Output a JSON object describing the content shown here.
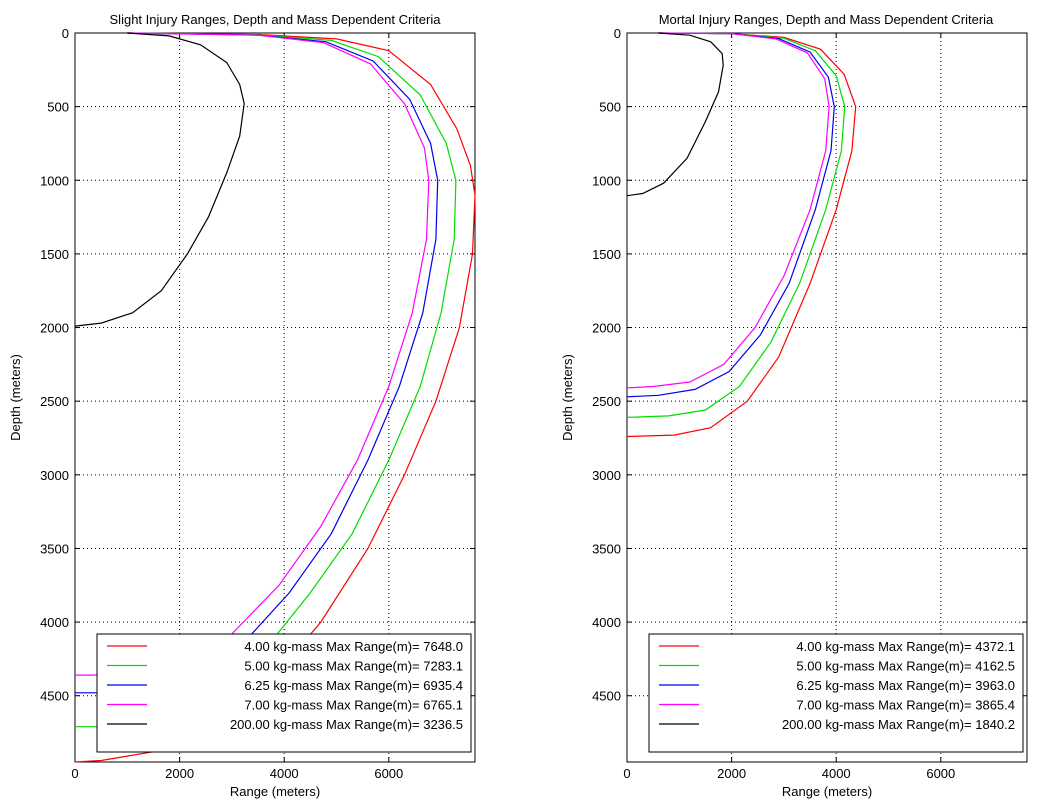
{
  "chart_data": [
    {
      "type": "line",
      "title": "Slight Injury Ranges, Depth and Mass Dependent Criteria",
      "xlabel": "Range (meters)",
      "ylabel": "Depth (meters)",
      "xlim": [
        0,
        7648
      ],
      "ylim": [
        4950,
        0
      ],
      "y_reversed": true,
      "xticks": [
        0,
        2000,
        4000,
        6000
      ],
      "yticks": [
        0,
        500,
        1000,
        1500,
        2000,
        2500,
        3000,
        3500,
        4000,
        4500
      ],
      "grid": true,
      "legend_position": "bottom-right",
      "series": [
        {
          "name": "4.00 kg-mass Max Range(m)= 7648.0",
          "color": "#ff0000",
          "points": [
            [
              1000,
              0
            ],
            [
              3500,
              10
            ],
            [
              5000,
              40
            ],
            [
              6000,
              120
            ],
            [
              6800,
              350
            ],
            [
              7300,
              650
            ],
            [
              7560,
              900
            ],
            [
              7648,
              1100
            ],
            [
              7600,
              1500
            ],
            [
              7350,
              2000
            ],
            [
              6900,
              2500
            ],
            [
              6300,
              3000
            ],
            [
              5600,
              3500
            ],
            [
              4700,
              4000
            ],
            [
              3500,
              4500
            ],
            [
              2500,
              4750
            ],
            [
              1500,
              4880
            ],
            [
              500,
              4940
            ],
            [
              0,
              4950
            ]
          ]
        },
        {
          "name": "5.00 kg-mass Max Range(m)= 7283.1",
          "color": "#00dd00",
          "points": [
            [
              1000,
              0
            ],
            [
              3500,
              12
            ],
            [
              4900,
              50
            ],
            [
              5800,
              160
            ],
            [
              6600,
              420
            ],
            [
              7100,
              750
            ],
            [
              7283,
              1000
            ],
            [
              7250,
              1400
            ],
            [
              7000,
              1900
            ],
            [
              6600,
              2400
            ],
            [
              6000,
              2900
            ],
            [
              5300,
              3400
            ],
            [
              4500,
              3800
            ],
            [
              3600,
              4200
            ],
            [
              2500,
              4500
            ],
            [
              1500,
              4650
            ],
            [
              500,
              4710
            ],
            [
              0,
              4710
            ]
          ]
        },
        {
          "name": "6.25 kg-mass Max Range(m)= 6935.4",
          "color": "#0000ee",
          "points": [
            [
              1000,
              0
            ],
            [
              3500,
              14
            ],
            [
              4800,
              60
            ],
            [
              5700,
              190
            ],
            [
              6400,
              450
            ],
            [
              6800,
              750
            ],
            [
              6935,
              1000
            ],
            [
              6900,
              1400
            ],
            [
              6650,
              1900
            ],
            [
              6200,
              2400
            ],
            [
              5600,
              2900
            ],
            [
              4900,
              3400
            ],
            [
              4100,
              3800
            ],
            [
              3200,
              4150
            ],
            [
              2200,
              4380
            ],
            [
              1200,
              4460
            ],
            [
              400,
              4480
            ],
            [
              0,
              4480
            ]
          ]
        },
        {
          "name": "7.00 kg-mass Max Range(m)= 6765.1",
          "color": "#ff00ff",
          "points": [
            [
              1000,
              0
            ],
            [
              3500,
              15
            ],
            [
              4750,
              65
            ],
            [
              5650,
              210
            ],
            [
              6300,
              480
            ],
            [
              6680,
              780
            ],
            [
              6765,
              1000
            ],
            [
              6720,
              1400
            ],
            [
              6450,
              1900
            ],
            [
              6000,
              2400
            ],
            [
              5400,
              2900
            ],
            [
              4700,
              3350
            ],
            [
              3900,
              3750
            ],
            [
              3000,
              4080
            ],
            [
              2000,
              4270
            ],
            [
              1000,
              4350
            ],
            [
              300,
              4360
            ],
            [
              0,
              4360
            ]
          ]
        },
        {
          "name": "200.00 kg-mass Max Range(m)= 3236.5",
          "color": "#000000",
          "points": [
            [
              1000,
              0
            ],
            [
              1800,
              20
            ],
            [
              2400,
              80
            ],
            [
              2900,
              200
            ],
            [
              3150,
              350
            ],
            [
              3236,
              480
            ],
            [
              3150,
              700
            ],
            [
              2900,
              950
            ],
            [
              2550,
              1250
            ],
            [
              2150,
              1500
            ],
            [
              1650,
              1750
            ],
            [
              1100,
              1900
            ],
            [
              500,
              1970
            ],
            [
              0,
              1990
            ]
          ]
        }
      ]
    },
    {
      "type": "line",
      "title": "Mortal Injury Ranges, Depth and Mass Dependent Criteria",
      "xlabel": "Range (meters)",
      "ylabel": "Depth (meters)",
      "xlim": [
        0,
        7648
      ],
      "ylim": [
        4950,
        0
      ],
      "y_reversed": true,
      "xticks": [
        0,
        2000,
        4000,
        6000
      ],
      "yticks": [
        0,
        500,
        1000,
        1500,
        2000,
        2500,
        3000,
        3500,
        4000,
        4500
      ],
      "grid": true,
      "legend_position": "bottom-right",
      "series": [
        {
          "name": "4.00 kg-mass Max Range(m)= 4372.1",
          "color": "#ff0000",
          "points": [
            [
              600,
              0
            ],
            [
              2000,
              5
            ],
            [
              3000,
              30
            ],
            [
              3700,
              110
            ],
            [
              4150,
              280
            ],
            [
              4372,
              500
            ],
            [
              4300,
              800
            ],
            [
              4000,
              1200
            ],
            [
              3500,
              1700
            ],
            [
              2900,
              2200
            ],
            [
              2300,
              2500
            ],
            [
              1600,
              2680
            ],
            [
              900,
              2730
            ],
            [
              0,
              2740
            ]
          ]
        },
        {
          "name": "5.00 kg-mass Max Range(m)= 4162.5",
          "color": "#00dd00",
          "points": [
            [
              600,
              0
            ],
            [
              2000,
              5
            ],
            [
              3000,
              35
            ],
            [
              3600,
              120
            ],
            [
              4000,
              290
            ],
            [
              4162,
              500
            ],
            [
              4100,
              800
            ],
            [
              3800,
              1200
            ],
            [
              3300,
              1700
            ],
            [
              2750,
              2100
            ],
            [
              2150,
              2400
            ],
            [
              1500,
              2560
            ],
            [
              800,
              2600
            ],
            [
              0,
              2610
            ]
          ]
        },
        {
          "name": "6.25 kg-mass Max Range(m)= 3963.0",
          "color": "#0000ee",
          "points": [
            [
              600,
              0
            ],
            [
              2000,
              5
            ],
            [
              2900,
              38
            ],
            [
              3500,
              130
            ],
            [
              3850,
              300
            ],
            [
              3963,
              500
            ],
            [
              3900,
              800
            ],
            [
              3600,
              1200
            ],
            [
              3100,
              1700
            ],
            [
              2550,
              2050
            ],
            [
              1950,
              2300
            ],
            [
              1300,
              2420
            ],
            [
              600,
              2460
            ],
            [
              0,
              2470
            ]
          ]
        },
        {
          "name": "7.00 kg-mass Max Range(m)= 3865.4",
          "color": "#ff00ff",
          "points": [
            [
              600,
              0
            ],
            [
              2000,
              5
            ],
            [
              2850,
              40
            ],
            [
              3450,
              135
            ],
            [
              3780,
              310
            ],
            [
              3865,
              500
            ],
            [
              3800,
              800
            ],
            [
              3500,
              1200
            ],
            [
              3000,
              1650
            ],
            [
              2450,
              2000
            ],
            [
              1850,
              2250
            ],
            [
              1200,
              2370
            ],
            [
              500,
              2400
            ],
            [
              0,
              2410
            ]
          ]
        },
        {
          "name": "200.00 kg-mass Max Range(m)= 1840.2",
          "color": "#000000",
          "points": [
            [
              600,
              0
            ],
            [
              1200,
              15
            ],
            [
              1600,
              60
            ],
            [
              1820,
              140
            ],
            [
              1840,
              220
            ],
            [
              1750,
              400
            ],
            [
              1500,
              600
            ],
            [
              1150,
              850
            ],
            [
              700,
              1020
            ],
            [
              300,
              1090
            ],
            [
              0,
              1105
            ]
          ]
        }
      ]
    }
  ]
}
